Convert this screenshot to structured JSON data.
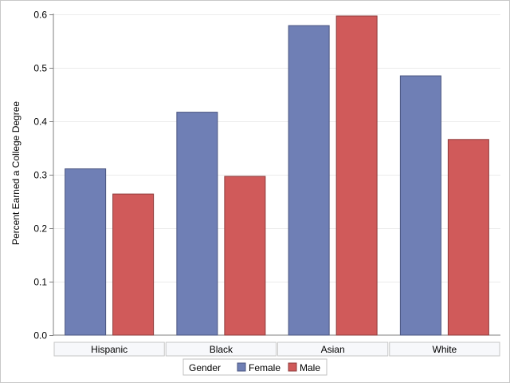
{
  "chart_data": {
    "type": "bar",
    "ylabel": "Percent Earned a College Degree",
    "xlabel": "",
    "ylim": [
      0,
      0.6
    ],
    "yticks": [
      "0.0",
      "0.1",
      "0.2",
      "0.3",
      "0.4",
      "0.5",
      "0.6"
    ],
    "grid": true,
    "categories": [
      "Hispanic",
      "Black",
      "Asian",
      "White"
    ],
    "series": [
      {
        "name": "Female",
        "values": [
          0.311,
          0.417,
          0.579,
          0.485
        ],
        "color": "#6f7fb5"
      },
      {
        "name": "Male",
        "values": [
          0.264,
          0.297,
          0.597,
          0.366
        ],
        "color": "#d05a5a"
      }
    ],
    "legend": {
      "title": "Gender",
      "placement": "bottom-center"
    }
  }
}
